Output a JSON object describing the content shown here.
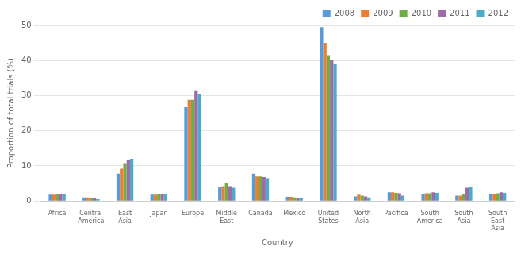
{
  "chart_data": {
    "type": "bar",
    "categories": [
      "Africa",
      "Central\nAmerica",
      "East\nAsia",
      "Japan",
      "Europe",
      "Middle\nEast",
      "Canada",
      "Mexico",
      "United\nStates",
      "North\nAsia",
      "Pacifica",
      "South\nAmerica",
      "South\nAsia",
      "South\nEast\nAsia"
    ],
    "series": [
      {
        "name": "2008",
        "color": "#5B9BD5",
        "values": [
          1.8,
          1.0,
          7.8,
          1.8,
          26.7,
          4.0,
          7.8,
          1.2,
          49.5,
          1.3,
          2.5,
          2.0,
          1.5,
          2.0
        ]
      },
      {
        "name": "2009",
        "color": "#ED7D31",
        "values": [
          1.8,
          1.0,
          9.2,
          1.8,
          28.8,
          4.2,
          7.0,
          1.2,
          45.0,
          1.8,
          2.5,
          2.2,
          1.5,
          2.0
        ]
      },
      {
        "name": "2010",
        "color": "#70AD47",
        "values": [
          2.0,
          0.9,
          10.8,
          1.9,
          28.8,
          5.0,
          7.0,
          1.0,
          41.5,
          1.5,
          2.3,
          2.2,
          2.0,
          2.2
        ]
      },
      {
        "name": "2011",
        "color": "#9E6AAC",
        "values": [
          2.0,
          0.8,
          11.8,
          2.0,
          31.3,
          4.2,
          6.8,
          0.9,
          40.3,
          1.3,
          2.2,
          2.5,
          3.8,
          2.5
        ]
      },
      {
        "name": "2012",
        "color": "#4BACC6",
        "values": [
          2.0,
          0.5,
          12.0,
          2.0,
          30.5,
          3.8,
          6.5,
          0.8,
          39.0,
          1.0,
          1.5,
          2.3,
          4.0,
          2.3
        ]
      }
    ],
    "xlabel": "Country",
    "ylabel": "Proportion of total trials (%)",
    "ylim": [
      0,
      50
    ],
    "yticks": [
      0,
      10,
      20,
      30,
      40,
      50
    ],
    "grid": true,
    "legend": "upper right"
  }
}
